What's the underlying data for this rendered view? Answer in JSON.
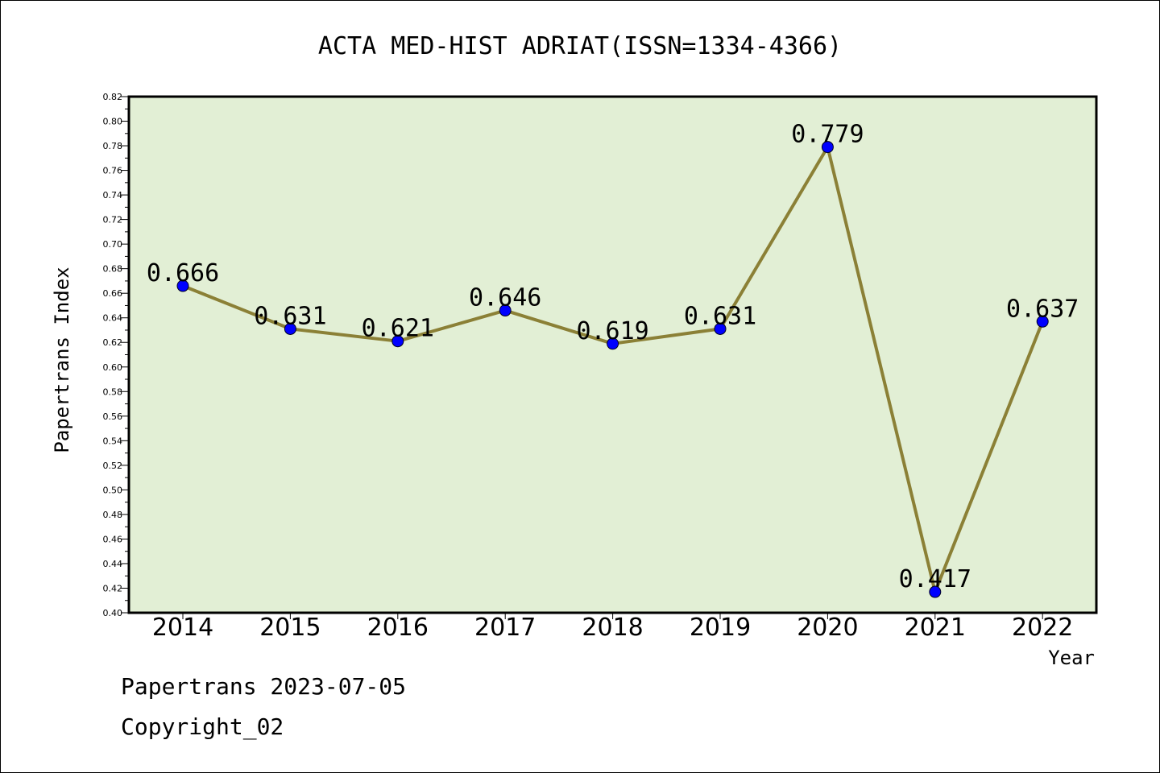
{
  "chart_data": {
    "type": "line",
    "title": "ACTA MED-HIST ADRIAT(ISSN=1334-4366)",
    "xlabel": "Year",
    "ylabel": "Papertrans Index",
    "categories": [
      "2014",
      "2015",
      "2016",
      "2017",
      "2018",
      "2019",
      "2020",
      "2021",
      "2022"
    ],
    "series": [
      {
        "values": [
          0.666,
          0.631,
          0.621,
          0.646,
          0.619,
          0.631,
          0.779,
          0.417,
          0.637
        ]
      }
    ],
    "value_labels": [
      "0.666",
      "0.631",
      "0.621",
      "0.646",
      "0.619",
      "0.631",
      "0.779",
      "0.417",
      "0.637"
    ],
    "ylim": [
      0.4,
      0.82
    ],
    "yticks": [
      "0.40",
      "0.42",
      "0.44",
      "0.46",
      "0.48",
      "0.50",
      "0.52",
      "0.54",
      "0.56",
      "0.58",
      "0.60",
      "0.62",
      "0.64",
      "0.66",
      "0.68",
      "0.70",
      "0.72",
      "0.74",
      "0.76",
      "0.78",
      "0.80",
      "0.82"
    ],
    "grid": false,
    "colors": {
      "plot_background": "#e2efd5",
      "line": "#8b8036",
      "marker": "#0000ff"
    }
  },
  "footer": {
    "line1": "Papertrans 2023-07-05",
    "line2": "Copyright_02"
  }
}
